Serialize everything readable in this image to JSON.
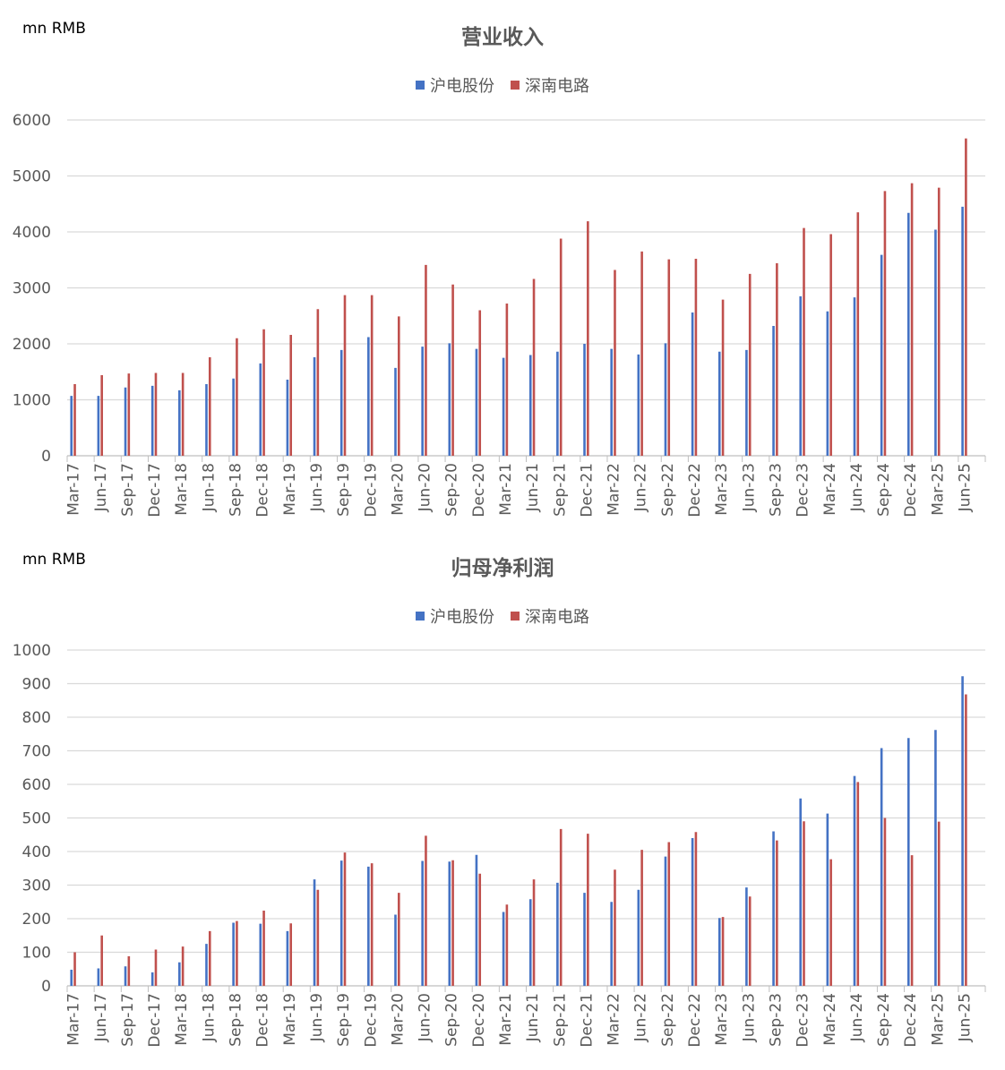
{
  "colors": {
    "hudian": "#4472C4",
    "shennan": "#C0504D",
    "grid": "#D9D9D9",
    "axis": "#595959"
  },
  "chart_data": [
    {
      "type": "bar",
      "title": "营业收入",
      "unit_label": "mn RMB",
      "ylim": [
        0,
        6000
      ],
      "yticks": [
        0,
        1000,
        2000,
        3000,
        4000,
        5000,
        6000
      ],
      "grid": true,
      "legend_position": "top-center",
      "categories": [
        "Mar-17",
        "Jun-17",
        "Sep-17",
        "Dec-17",
        "Mar-18",
        "Jun-18",
        "Sep-18",
        "Dec-18",
        "Mar-19",
        "Jun-19",
        "Sep-19",
        "Dec-19",
        "Mar-20",
        "Jun-20",
        "Sep-20",
        "Dec-20",
        "Mar-21",
        "Jun-21",
        "Sep-21",
        "Dec-21",
        "Mar-22",
        "Jun-22",
        "Sep-22",
        "Dec-22",
        "Mar-23",
        "Jun-23",
        "Sep-23",
        "Dec-23",
        "Mar-24",
        "Jun-24",
        "Sep-24",
        "Dec-24",
        "Mar-25",
        "Jun-25"
      ],
      "series": [
        {
          "name": "沪电股份",
          "color_key": "hudian",
          "values": [
            1070,
            1070,
            1220,
            1250,
            1170,
            1280,
            1380,
            1650,
            1360,
            1760,
            1890,
            2120,
            1570,
            1950,
            2010,
            1910,
            1750,
            1800,
            1860,
            2000,
            1910,
            1810,
            2010,
            2560,
            1860,
            1890,
            2320,
            2850,
            2580,
            2830,
            3590,
            4340,
            4040,
            4450
          ]
        },
        {
          "name": "深南电路",
          "color_key": "shennan",
          "values": [
            1280,
            1440,
            1470,
            1480,
            1480,
            1760,
            2100,
            2260,
            2160,
            2620,
            2870,
            2870,
            2490,
            3410,
            3060,
            2600,
            2720,
            3160,
            3880,
            4190,
            3320,
            3650,
            3510,
            3520,
            2790,
            3250,
            3440,
            4070,
            3960,
            4350,
            4730,
            4870,
            4790,
            5670
          ]
        }
      ]
    },
    {
      "type": "bar",
      "title": "归母净利润",
      "unit_label": "mn RMB",
      "ylim": [
        0,
        1000
      ],
      "yticks": [
        0,
        100,
        200,
        300,
        400,
        500,
        600,
        700,
        800,
        900,
        1000
      ],
      "grid": true,
      "legend_position": "top-center",
      "categories": [
        "Mar-17",
        "Jun-17",
        "Sep-17",
        "Dec-17",
        "Mar-18",
        "Jun-18",
        "Sep-18",
        "Dec-18",
        "Mar-19",
        "Jun-19",
        "Sep-19",
        "Dec-19",
        "Mar-20",
        "Jun-20",
        "Sep-20",
        "Dec-20",
        "Mar-21",
        "Jun-21",
        "Sep-21",
        "Dec-21",
        "Mar-22",
        "Jun-22",
        "Sep-22",
        "Dec-22",
        "Mar-23",
        "Jun-23",
        "Sep-23",
        "Dec-23",
        "Mar-24",
        "Jun-24",
        "Sep-24",
        "Dec-24",
        "Mar-25",
        "Jun-25"
      ],
      "series": [
        {
          "name": "沪电股份",
          "color_key": "hudian",
          "values": [
            48,
            52,
            58,
            40,
            70,
            125,
            188,
            185,
            163,
            317,
            373,
            355,
            212,
            372,
            370,
            390,
            220,
            258,
            307,
            277,
            250,
            286,
            385,
            440,
            202,
            293,
            460,
            558,
            513,
            625,
            708,
            738,
            762,
            922
          ]
        },
        {
          "name": "深南电路",
          "color_key": "shennan",
          "values": [
            100,
            150,
            88,
            108,
            117,
            163,
            193,
            224,
            186,
            286,
            397,
            365,
            277,
            447,
            374,
            334,
            242,
            317,
            467,
            453,
            346,
            405,
            428,
            458,
            205,
            266,
            433,
            490,
            377,
            607,
            500,
            389,
            489,
            868
          ]
        }
      ]
    }
  ]
}
